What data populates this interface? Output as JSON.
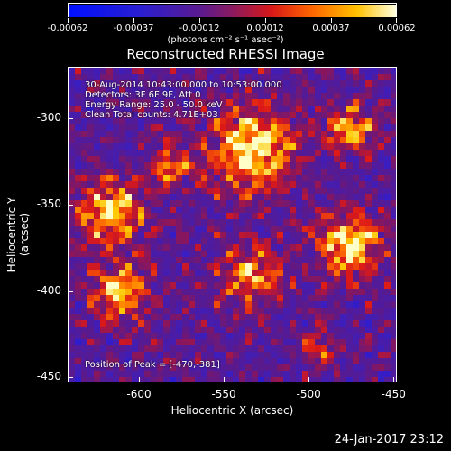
{
  "colorbar": {
    "tick_labels": [
      "-0.00062",
      "-0.00037",
      "-0.00012",
      "0.00012",
      "0.00037",
      "0.00062"
    ],
    "unit_label": "(photons cm⁻² s⁻¹ asec⁻²)"
  },
  "title": "Reconstructed RHESSI Image",
  "info": {
    "time_range": "30-Aug-2014 10:43:00.000 to 10:53:00.000",
    "detectors": "Detectors: 3F 6F 9F, Att 0",
    "energy": "Energy Range: 25.0 - 50.0 keV",
    "method": "Clean    Total counts: 4.71E+03",
    "peak": "Position of Peak = [-470,-381]"
  },
  "axes": {
    "x_label": "Heliocentric X (arcsec)",
    "y_label": "Heliocentric Y (arcsec)",
    "x_ticks": [
      "-600",
      "-550",
      "-500",
      "-450"
    ],
    "y_ticks": [
      "-300",
      "-350",
      "-400",
      "-450"
    ],
    "x_range": [
      -642,
      -448
    ],
    "y_range": [
      -453,
      -270
    ]
  },
  "timestamp": "24-Jan-2017 23:12",
  "colors": {
    "background": "#000000",
    "colormap": [
      "#0000ff",
      "#3020c0",
      "#5a1c96",
      "#8a1a70",
      "#c81e1e",
      "#ff5a00",
      "#ffb400",
      "#ffff80",
      "#ffffff"
    ]
  }
}
